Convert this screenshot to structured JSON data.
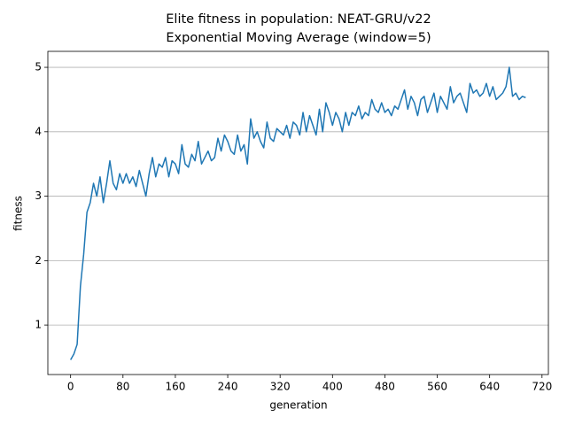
{
  "chart_data": {
    "type": "line",
    "title": "Elite fitness in population: NEAT-GRU/v22",
    "subtitle": "Exponential Moving Average (window=5)",
    "x_label": "generation",
    "y_label": "fitness",
    "x": [
      0,
      5,
      10,
      15,
      20,
      25,
      30,
      35,
      40,
      45,
      50,
      55,
      60,
      65,
      70,
      75,
      80,
      85,
      90,
      95,
      100,
      105,
      110,
      115,
      120,
      125,
      130,
      135,
      140,
      145,
      150,
      155,
      160,
      165,
      170,
      175,
      180,
      185,
      190,
      195,
      200,
      205,
      210,
      215,
      220,
      225,
      230,
      235,
      240,
      245,
      250,
      255,
      260,
      265,
      270,
      275,
      280,
      285,
      290,
      295,
      300,
      305,
      310,
      315,
      320,
      325,
      330,
      335,
      340,
      345,
      350,
      355,
      360,
      365,
      370,
      375,
      380,
      385,
      390,
      395,
      400,
      405,
      410,
      415,
      420,
      425,
      430,
      435,
      440,
      445,
      450,
      455,
      460,
      465,
      470,
      475,
      480,
      485,
      490,
      495,
      500,
      505,
      510,
      515,
      520,
      525,
      530,
      535,
      540,
      545,
      550,
      555,
      560,
      565,
      570,
      575,
      580,
      585,
      590,
      595,
      600,
      605,
      610,
      615,
      620,
      625,
      630,
      635,
      640,
      645,
      650,
      655,
      660,
      665,
      670,
      675,
      680,
      685,
      690,
      695
    ],
    "series": [
      {
        "name": "fitness",
        "color": "#1f77b4",
        "values": [
          0.46,
          0.55,
          0.7,
          1.6,
          2.1,
          2.75,
          2.9,
          3.2,
          3.0,
          3.3,
          2.9,
          3.2,
          3.55,
          3.2,
          3.1,
          3.35,
          3.2,
          3.35,
          3.2,
          3.3,
          3.15,
          3.4,
          3.2,
          3.0,
          3.35,
          3.6,
          3.3,
          3.5,
          3.45,
          3.6,
          3.3,
          3.55,
          3.5,
          3.35,
          3.8,
          3.5,
          3.45,
          3.65,
          3.55,
          3.85,
          3.5,
          3.6,
          3.7,
          3.55,
          3.6,
          3.9,
          3.7,
          3.95,
          3.85,
          3.7,
          3.65,
          3.95,
          3.7,
          3.8,
          3.5,
          4.2,
          3.9,
          4.0,
          3.85,
          3.75,
          4.15,
          3.9,
          3.85,
          4.05,
          4.0,
          3.95,
          4.1,
          3.9,
          4.15,
          4.1,
          3.95,
          4.3,
          4.0,
          4.25,
          4.1,
          3.95,
          4.35,
          4.0,
          4.45,
          4.3,
          4.1,
          4.3,
          4.2,
          4.0,
          4.3,
          4.1,
          4.3,
          4.25,
          4.4,
          4.2,
          4.3,
          4.25,
          4.5,
          4.35,
          4.3,
          4.45,
          4.3,
          4.35,
          4.25,
          4.4,
          4.35,
          4.5,
          4.65,
          4.35,
          4.55,
          4.45,
          4.25,
          4.5,
          4.55,
          4.3,
          4.45,
          4.6,
          4.3,
          4.55,
          4.45,
          4.35,
          4.7,
          4.45,
          4.55,
          4.6,
          4.45,
          4.3,
          4.75,
          4.6,
          4.65,
          4.55,
          4.6,
          4.75,
          4.55,
          4.7,
          4.5,
          4.55,
          4.6,
          4.7,
          5.0,
          4.55,
          4.6,
          4.5,
          4.55,
          4.53
        ]
      }
    ],
    "xlim": [
      -34.75,
      729.75
    ],
    "ylim": [
      0.232,
      5.248
    ],
    "xticks": [
      0,
      80,
      160,
      240,
      320,
      400,
      480,
      560,
      640,
      720
    ],
    "yticks": [
      1,
      2,
      3,
      4,
      5
    ],
    "grid_y": true
  }
}
